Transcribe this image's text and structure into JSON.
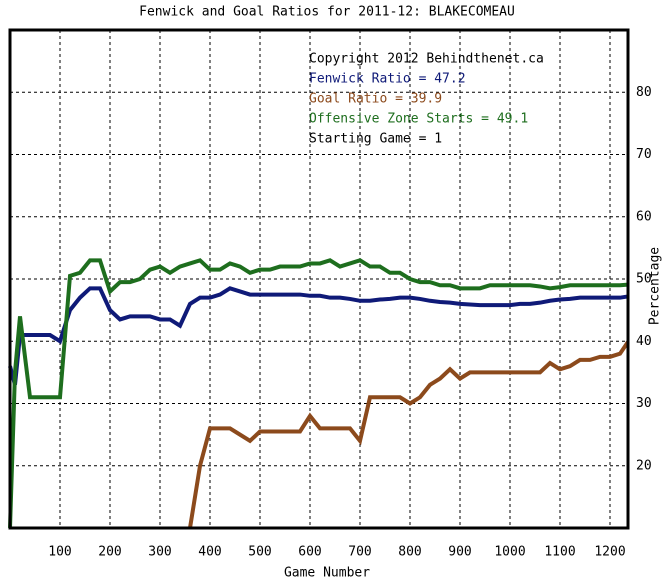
{
  "chart_data": {
    "type": "line",
    "title": "Fenwick and Goal Ratios for 2011-12: BLAKECOMEAU",
    "x_label": "Game Number",
    "y_label": "Percentage",
    "annotations": [
      "Copyright 2012 Behindthenet.ca",
      "Starting Game = 1"
    ],
    "xlim": [
      0,
      1236
    ],
    "ylim": [
      10,
      90
    ],
    "xticks": [
      100,
      200,
      300,
      400,
      500,
      600,
      700,
      800,
      900,
      1000,
      1100,
      1200
    ],
    "yticks": [
      20,
      30,
      40,
      50,
      60,
      70,
      80
    ],
    "grid": true,
    "x": [
      0,
      10,
      20,
      40,
      60,
      80,
      100,
      120,
      140,
      160,
      180,
      200,
      220,
      240,
      260,
      280,
      300,
      320,
      340,
      360,
      380,
      400,
      420,
      440,
      460,
      480,
      500,
      520,
      540,
      560,
      580,
      600,
      620,
      640,
      660,
      680,
      700,
      720,
      740,
      760,
      780,
      800,
      820,
      840,
      860,
      880,
      900,
      920,
      940,
      960,
      980,
      1000,
      1020,
      1040,
      1060,
      1080,
      1100,
      1120,
      1140,
      1160,
      1180,
      1200,
      1220,
      1236
    ],
    "series": [
      {
        "name": "Fenwick Ratio = 47.2",
        "color": "#0f1a78",
        "values": [
          36,
          33,
          41,
          41,
          41,
          41,
          40,
          45,
          47,
          48.5,
          48.5,
          45,
          43.5,
          44,
          44,
          44,
          43.5,
          43.5,
          42.5,
          46,
          47,
          47,
          47.5,
          48.5,
          48,
          47.5,
          47.5,
          47.5,
          47.5,
          47.5,
          47.5,
          47.3,
          47.3,
          47,
          47,
          46.8,
          46.5,
          46.5,
          46.7,
          46.8,
          47,
          47,
          46.8,
          46.5,
          46.3,
          46.2,
          46,
          45.9,
          45.8,
          45.8,
          45.8,
          45.8,
          46,
          46,
          46.2,
          46.5,
          46.7,
          46.8,
          47,
          47,
          47,
          47,
          47,
          47.2
        ]
      },
      {
        "name": "Goal Ratio = 39.9",
        "color": "#8c4a1c",
        "values": [
          null,
          null,
          null,
          null,
          null,
          null,
          null,
          null,
          null,
          null,
          null,
          null,
          null,
          null,
          null,
          null,
          null,
          null,
          null,
          10,
          20,
          26,
          26,
          26,
          25,
          24,
          25.5,
          25.5,
          25.5,
          25.5,
          25.5,
          28,
          26,
          26,
          26,
          26,
          24,
          31,
          31,
          31,
          31,
          30,
          31,
          33,
          34,
          35.5,
          34,
          35,
          35,
          35,
          35,
          35,
          35,
          35,
          35,
          36.5,
          35.5,
          36,
          37,
          37,
          37.5,
          37.5,
          38,
          39.9
        ]
      },
      {
        "name": "Offensive Zone Starts = 49.1",
        "color": "#1e6e1e",
        "values": [
          10,
          35,
          44,
          31,
          31,
          31,
          31,
          50.5,
          51,
          53,
          53,
          48,
          49.5,
          49.5,
          50,
          51.5,
          52,
          51,
          52,
          52.5,
          53,
          51.5,
          51.5,
          52.5,
          52,
          51,
          51.5,
          51.5,
          52,
          52,
          52,
          52.5,
          52.5,
          53,
          52,
          52.5,
          53,
          52,
          52,
          51,
          51,
          50,
          49.5,
          49.5,
          49,
          49,
          48.5,
          48.5,
          48.5,
          49,
          49,
          49,
          49,
          49,
          48.8,
          48.5,
          48.7,
          49,
          49,
          49,
          49,
          49,
          49,
          49.1
        ]
      }
    ]
  }
}
